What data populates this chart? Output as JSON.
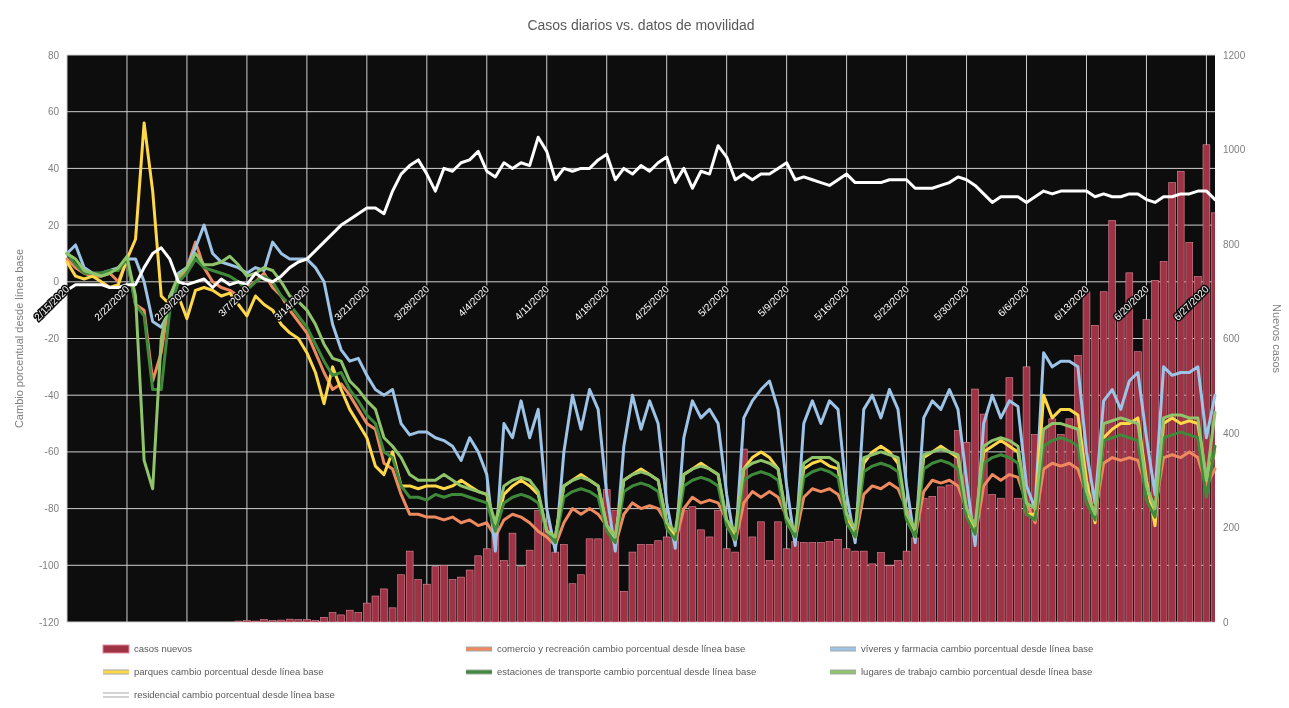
{
  "chart_data": {
    "type": "line",
    "title": "Casos diarios vs. datos de movilidad",
    "ylabel": "Cambio porcentual desde línea base",
    "y2label": "Nuevos casos",
    "x": [
      "2020-02-15",
      "2020-02-16",
      "2020-02-17",
      "2020-02-18",
      "2020-02-19",
      "2020-02-20",
      "2020-02-21",
      "2020-02-22",
      "2020-02-23",
      "2020-02-24",
      "2020-02-25",
      "2020-02-26",
      "2020-02-27",
      "2020-02-28",
      "2020-02-29",
      "2020-03-01",
      "2020-03-02",
      "2020-03-03",
      "2020-03-04",
      "2020-03-05",
      "2020-03-06",
      "2020-03-07",
      "2020-03-08",
      "2020-03-09",
      "2020-03-10",
      "2020-03-11",
      "2020-03-12",
      "2020-03-13",
      "2020-03-14",
      "2020-03-15",
      "2020-03-16",
      "2020-03-17",
      "2020-03-18",
      "2020-03-19",
      "2020-03-20",
      "2020-03-21",
      "2020-03-22",
      "2020-03-23",
      "2020-03-24",
      "2020-03-25",
      "2020-03-26",
      "2020-03-27",
      "2020-03-28",
      "2020-03-29",
      "2020-03-30",
      "2020-03-31",
      "2020-04-01",
      "2020-04-02",
      "2020-04-03",
      "2020-04-04",
      "2020-04-05",
      "2020-04-06",
      "2020-04-07",
      "2020-04-08",
      "2020-04-09",
      "2020-04-10",
      "2020-04-11",
      "2020-04-12",
      "2020-04-13",
      "2020-04-14",
      "2020-04-15",
      "2020-04-16",
      "2020-04-17",
      "2020-04-18",
      "2020-04-19",
      "2020-04-20",
      "2020-04-21",
      "2020-04-22",
      "2020-04-23",
      "2020-04-24",
      "2020-04-25",
      "2020-04-26",
      "2020-04-27",
      "2020-04-28",
      "2020-04-29",
      "2020-04-30",
      "2020-05-01",
      "2020-05-02",
      "2020-05-03",
      "2020-05-04",
      "2020-05-05",
      "2020-05-06",
      "2020-05-07",
      "2020-05-08",
      "2020-05-09",
      "2020-05-10",
      "2020-05-11",
      "2020-05-12",
      "2020-05-13",
      "2020-05-14",
      "2020-05-15",
      "2020-05-16",
      "2020-05-17",
      "2020-05-18",
      "2020-05-19",
      "2020-05-20",
      "2020-05-21",
      "2020-05-22",
      "2020-05-23",
      "2020-05-24",
      "2020-05-25",
      "2020-05-26",
      "2020-05-27",
      "2020-05-28",
      "2020-05-29",
      "2020-05-30",
      "2020-05-31",
      "2020-06-01",
      "2020-06-02",
      "2020-06-03",
      "2020-06-04",
      "2020-06-05",
      "2020-06-06",
      "2020-06-07",
      "2020-06-08",
      "2020-06-09",
      "2020-06-10",
      "2020-06-11",
      "2020-06-12",
      "2020-06-13",
      "2020-06-14",
      "2020-06-15",
      "2020-06-16",
      "2020-06-17",
      "2020-06-18",
      "2020-06-19",
      "2020-06-20",
      "2020-06-21",
      "2020-06-22",
      "2020-06-23",
      "2020-06-24",
      "2020-06-25",
      "2020-06-26",
      "2020-06-27",
      "2020-06-28"
    ],
    "xlim": [
      "2020-02-15",
      "2020-06-28"
    ],
    "xticks": [
      {
        "value": "2020-02-15",
        "label": "2/15/2020"
      },
      {
        "value": "2020-02-22",
        "label": "2/22/2020"
      },
      {
        "value": "2020-02-29",
        "label": "2/29/2020"
      },
      {
        "value": "2020-03-07",
        "label": "3/7/2020"
      },
      {
        "value": "2020-03-14",
        "label": "3/14/2020"
      },
      {
        "value": "2020-03-21",
        "label": "3/21/2020"
      },
      {
        "value": "2020-03-28",
        "label": "3/28/2020"
      },
      {
        "value": "2020-04-04",
        "label": "4/4/2020"
      },
      {
        "value": "2020-04-11",
        "label": "4/11/2020"
      },
      {
        "value": "2020-04-18",
        "label": "4/18/2020"
      },
      {
        "value": "2020-04-25",
        "label": "4/25/2020"
      },
      {
        "value": "2020-05-02",
        "label": "5/2/2020"
      },
      {
        "value": "2020-05-09",
        "label": "5/9/2020"
      },
      {
        "value": "2020-05-16",
        "label": "5/16/2020"
      },
      {
        "value": "2020-05-23",
        "label": "5/23/2020"
      },
      {
        "value": "2020-05-30",
        "label": "5/30/2020"
      },
      {
        "value": "2020-06-06",
        "label": "6/6/2020"
      },
      {
        "value": "2020-06-13",
        "label": "6/13/2020"
      },
      {
        "value": "2020-06-20",
        "label": "6/20/2020"
      },
      {
        "value": "2020-06-27",
        "label": "6/27/2020"
      }
    ],
    "ylim": [
      -120,
      80
    ],
    "yticks": [
      -120,
      -100,
      -80,
      -60,
      -40,
      -20,
      0,
      20,
      40,
      60,
      80
    ],
    "y2lim": [
      0,
      1200
    ],
    "y2ticks": [
      0,
      200,
      400,
      600,
      800,
      1000,
      1200
    ],
    "grid": true,
    "legend": "bottom",
    "series": [
      {
        "name": "casos nuevos",
        "type": "bar",
        "axis": "y2",
        "color": "#9e3346",
        "values": [
          0,
          0,
          0,
          0,
          0,
          0,
          0,
          0,
          0,
          0,
          0,
          0,
          0,
          0,
          0,
          0,
          0,
          0,
          0,
          0,
          2,
          3,
          2,
          5,
          3,
          4,
          6,
          5,
          5,
          3,
          10,
          20,
          15,
          25,
          20,
          40,
          55,
          70,
          30,
          100,
          150,
          90,
          80,
          117,
          120,
          90,
          95,
          110,
          140,
          155,
          195,
          130,
          188,
          117,
          152,
          236,
          212,
          148,
          164,
          81,
          100,
          176,
          176,
          280,
          236,
          65,
          148,
          164,
          164,
          172,
          180,
          195,
          236,
          244,
          195,
          180,
          236,
          155,
          148,
          366,
          180,
          212,
          130,
          212,
          155,
          170,
          168,
          168,
          168,
          170,
          175,
          155,
          150,
          150,
          123,
          147,
          119,
          130,
          150,
          178,
          262,
          266,
          286,
          290,
          405,
          380,
          493,
          440,
          270,
          262,
          517,
          262,
          540,
          397,
          410,
          430,
          397,
          430,
          564,
          699,
          628,
          699,
          850,
          644,
          739,
          572,
          640,
          723,
          763,
          930,
          954,
          803,
          731,
          1010,
          866
        ]
      },
      {
        "name": "comercio y recreación cambio porcentual desde línea base",
        "color": "#ee8a60",
        "values": [
          8,
          5,
          3,
          2,
          2,
          3,
          0,
          8,
          -8,
          -10,
          -35,
          -25,
          -5,
          0,
          5,
          14,
          5,
          0,
          -2,
          -3,
          -5,
          -2,
          0,
          3,
          -2,
          -5,
          -10,
          -14,
          -18,
          -25,
          -32,
          -38,
          -36,
          -40,
          -45,
          -50,
          -52,
          -64,
          -66,
          -75,
          -82,
          -82,
          -83,
          -83,
          -84,
          -83,
          -85,
          -84,
          -86,
          -85,
          -90,
          -84,
          -82,
          -83,
          -85,
          -88,
          -90,
          -93,
          -85,
          -80,
          -82,
          -80,
          -82,
          -86,
          -93,
          -82,
          -78,
          -80,
          -79,
          -80,
          -85,
          -92,
          -80,
          -76,
          -78,
          -77,
          -78,
          -84,
          -92,
          -78,
          -74,
          -76,
          -74,
          -76,
          -83,
          -91,
          -76,
          -73,
          -74,
          -73,
          -75,
          -82,
          -91,
          -75,
          -72,
          -73,
          -71,
          -73,
          -80,
          -90,
          -74,
          -70,
          -71,
          -70,
          -72,
          -80,
          -90,
          -72,
          -68,
          -70,
          -68,
          -69,
          -78,
          -85,
          -66,
          -64,
          -65,
          -64,
          -66,
          -75,
          -82,
          -64,
          -62,
          -63,
          -62,
          -63,
          -73,
          -80,
          -62,
          -61,
          -62,
          -60,
          -62,
          -72,
          -66
        ]
      },
      {
        "name": "víveres y farmacia cambio porcentual desde línea base",
        "color": "#9dc3e6",
        "values": [
          10,
          13,
          5,
          3,
          3,
          4,
          5,
          8,
          8,
          0,
          -14,
          -16,
          -10,
          3,
          5,
          12,
          20,
          10,
          7,
          6,
          5,
          3,
          5,
          4,
          14,
          10,
          8,
          8,
          8,
          5,
          0,
          -15,
          -24,
          -28,
          -27,
          -33,
          -38,
          -40,
          -38,
          -50,
          -54,
          -53,
          -53,
          -55,
          -56,
          -58,
          -63,
          -55,
          -60,
          -68,
          -95,
          -50,
          -55,
          -42,
          -55,
          -45,
          -80,
          -95,
          -60,
          -40,
          -52,
          -38,
          -45,
          -75,
          -95,
          -58,
          -40,
          -52,
          -42,
          -50,
          -78,
          -94,
          -55,
          -42,
          -48,
          -45,
          -50,
          -75,
          -93,
          -48,
          -42,
          -38,
          -35,
          -45,
          -72,
          -93,
          -50,
          -42,
          -50,
          -42,
          -45,
          -75,
          -92,
          -45,
          -40,
          -48,
          -38,
          -45,
          -72,
          -92,
          -48,
          -42,
          -45,
          -38,
          -45,
          -70,
          -93,
          -50,
          -40,
          -48,
          -42,
          -44,
          -72,
          -80,
          -25,
          -30,
          -28,
          -28,
          -30,
          -60,
          -78,
          -42,
          -38,
          -45,
          -35,
          -32,
          -55,
          -75,
          -30,
          -33,
          -32,
          -32,
          -30,
          -55,
          -40
        ]
      },
      {
        "name": "parques cambio porcentual desde línea base",
        "color": "#ffd84a",
        "values": [
          7,
          2,
          1,
          2,
          0,
          -2,
          -1,
          8,
          15,
          56,
          32,
          -5,
          -8,
          -5,
          -13,
          -3,
          -2,
          -3,
          -5,
          -4,
          -8,
          -12,
          -5,
          -8,
          -10,
          -15,
          -18,
          -20,
          -25,
          -32,
          -43,
          -30,
          -38,
          -45,
          -50,
          -55,
          -65,
          -68,
          -60,
          -72,
          -72,
          -73,
          -72,
          -72,
          -73,
          -72,
          -70,
          -72,
          -74,
          -75,
          -88,
          -75,
          -72,
          -70,
          -72,
          -75,
          -88,
          -90,
          -72,
          -70,
          -68,
          -70,
          -72,
          -86,
          -90,
          -70,
          -68,
          -66,
          -68,
          -70,
          -85,
          -90,
          -68,
          -66,
          -64,
          -66,
          -68,
          -85,
          -90,
          -66,
          -62,
          -60,
          -62,
          -66,
          -84,
          -89,
          -66,
          -64,
          -63,
          -65,
          -66,
          -84,
          -90,
          -64,
          -60,
          -58,
          -60,
          -64,
          -83,
          -90,
          -62,
          -60,
          -58,
          -60,
          -62,
          -82,
          -88,
          -60,
          -58,
          -56,
          -58,
          -60,
          -82,
          -82,
          -40,
          -48,
          -45,
          -45,
          -47,
          -70,
          -85,
          -55,
          -52,
          -50,
          -50,
          -48,
          -70,
          -86,
          -50,
          -48,
          -50,
          -49,
          -50,
          -70,
          -60
        ]
      },
      {
        "name": "estaciones de transporte cambio porcentual desde línea base",
        "color": "#3f8a3a",
        "values": [
          10,
          6,
          3,
          3,
          3,
          4,
          4,
          8,
          -8,
          -12,
          -38,
          -38,
          -10,
          0,
          3,
          8,
          5,
          4,
          3,
          2,
          0,
          -3,
          0,
          2,
          0,
          -5,
          -8,
          -12,
          -16,
          -22,
          -28,
          -33,
          -32,
          -38,
          -42,
          -47,
          -50,
          -60,
          -62,
          -72,
          -76,
          -76,
          -77,
          -75,
          -76,
          -75,
          -75,
          -76,
          -77,
          -78,
          -88,
          -78,
          -76,
          -75,
          -76,
          -78,
          -88,
          -92,
          -76,
          -74,
          -73,
          -74,
          -76,
          -88,
          -92,
          -74,
          -72,
          -71,
          -72,
          -74,
          -87,
          -91,
          -72,
          -70,
          -69,
          -70,
          -72,
          -86,
          -91,
          -70,
          -68,
          -67,
          -68,
          -70,
          -85,
          -90,
          -69,
          -67,
          -66,
          -67,
          -69,
          -85,
          -90,
          -67,
          -65,
          -64,
          -65,
          -67,
          -84,
          -90,
          -66,
          -64,
          -63,
          -64,
          -66,
          -83,
          -89,
          -64,
          -62,
          -61,
          -62,
          -64,
          -82,
          -84,
          -58,
          -56,
          -55,
          -56,
          -58,
          -78,
          -84,
          -56,
          -55,
          -54,
          -55,
          -56,
          -77,
          -83,
          -55,
          -54,
          -53,
          -54,
          -55,
          -76,
          -58
        ]
      },
      {
        "name": "lugares de trabajo cambio porcentual desde línea base",
        "color": "#8fc46a",
        "values": [
          10,
          8,
          4,
          3,
          2,
          3,
          5,
          9,
          -5,
          -63,
          -73,
          -20,
          -5,
          2,
          5,
          10,
          6,
          6,
          7,
          9,
          6,
          2,
          3,
          5,
          4,
          0,
          -5,
          -7,
          -10,
          -15,
          -22,
          -27,
          -28,
          -35,
          -38,
          -42,
          -45,
          -55,
          -58,
          -62,
          -68,
          -70,
          -70,
          -70,
          -68,
          -70,
          -72,
          -73,
          -74,
          -75,
          -85,
          -72,
          -70,
          -69,
          -70,
          -74,
          -88,
          -90,
          -72,
          -70,
          -69,
          -70,
          -72,
          -86,
          -90,
          -70,
          -68,
          -67,
          -68,
          -70,
          -85,
          -88,
          -68,
          -66,
          -65,
          -66,
          -68,
          -84,
          -88,
          -66,
          -64,
          -63,
          -64,
          -66,
          -83,
          -88,
          -64,
          -62,
          -62,
          -62,
          -64,
          -82,
          -87,
          -62,
          -61,
          -60,
          -61,
          -62,
          -82,
          -87,
          -61,
          -60,
          -59,
          -60,
          -61,
          -80,
          -86,
          -58,
          -56,
          -55,
          -56,
          -58,
          -78,
          -80,
          -52,
          -50,
          -50,
          -51,
          -52,
          -74,
          -82,
          -50,
          -49,
          -48,
          -49,
          -50,
          -72,
          -80,
          -48,
          -47,
          -47,
          -48,
          -48,
          -70,
          -46
        ]
      },
      {
        "name": "residencial cambio porcentual desde línea base",
        "color": "#ffffff",
        "values": [
          -3,
          -1,
          -1,
          -1,
          -1,
          -2,
          -2,
          -1,
          -1,
          5,
          10,
          12,
          8,
          0,
          -1,
          0,
          1,
          -2,
          1,
          -1,
          0,
          -1,
          3,
          1,
          0,
          2,
          5,
          7,
          8,
          11,
          14,
          17,
          20,
          22,
          24,
          26,
          26,
          24,
          32,
          38,
          41,
          43,
          38,
          32,
          40,
          39,
          42,
          43,
          46,
          39,
          37,
          42,
          40,
          42,
          41,
          51,
          46,
          36,
          40,
          39,
          40,
          40,
          43,
          45,
          36,
          40,
          38,
          41,
          39,
          42,
          44,
          35,
          40,
          33,
          39,
          38,
          48,
          44,
          36,
          38,
          36,
          38,
          38,
          40,
          42,
          36,
          37,
          36,
          35,
          34,
          36,
          38,
          35,
          35,
          35,
          35,
          36,
          36,
          36,
          33,
          33,
          33,
          34,
          35,
          37,
          36,
          34,
          31,
          28,
          30,
          30,
          30,
          28,
          30,
          32,
          31,
          32,
          32,
          32,
          32,
          30,
          31,
          30,
          30,
          31,
          31,
          29,
          28,
          30,
          30,
          31,
          31,
          32,
          32,
          29
        ]
      }
    ]
  }
}
